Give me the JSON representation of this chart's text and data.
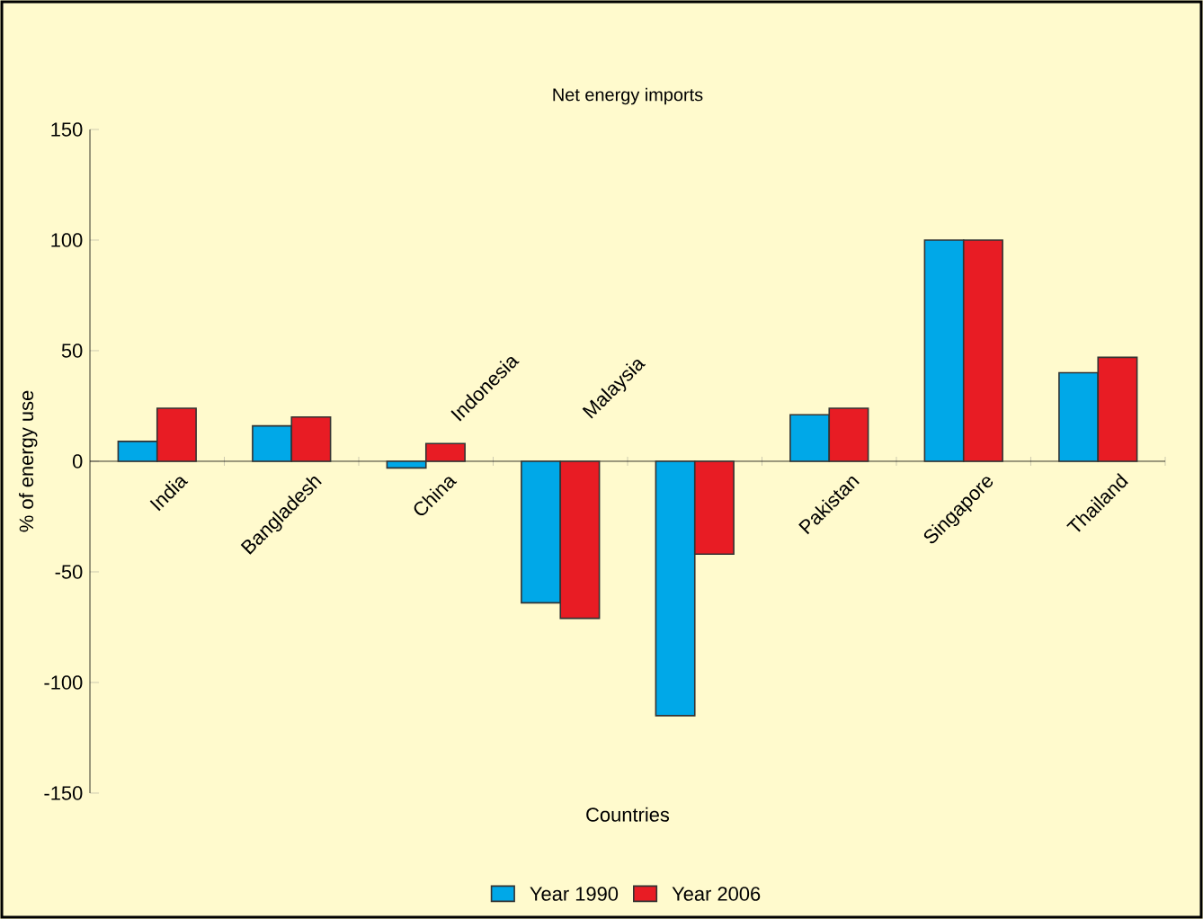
{
  "chart_data": {
    "type": "bar",
    "title": "Net energy imports",
    "xlabel": "Countries",
    "ylabel": "% of energy use",
    "categories": [
      "India",
      "Bangladesh",
      "China",
      "Indonesia",
      "Malaysia",
      "Pakistan",
      "Singapore",
      "Thailand"
    ],
    "series": [
      {
        "name": "Year 1990",
        "color": "#00a8e8",
        "values": [
          9,
          16,
          -3,
          -64,
          -115,
          21,
          100,
          40
        ]
      },
      {
        "name": "Year 2006",
        "color": "#e81c24",
        "values": [
          24,
          20,
          8,
          -71,
          -42,
          24,
          100,
          47
        ]
      }
    ],
    "ylim": [
      -150,
      150
    ],
    "yticks": [
      -150,
      -100,
      -50,
      0,
      50,
      100,
      150
    ],
    "legend": "bottom"
  }
}
